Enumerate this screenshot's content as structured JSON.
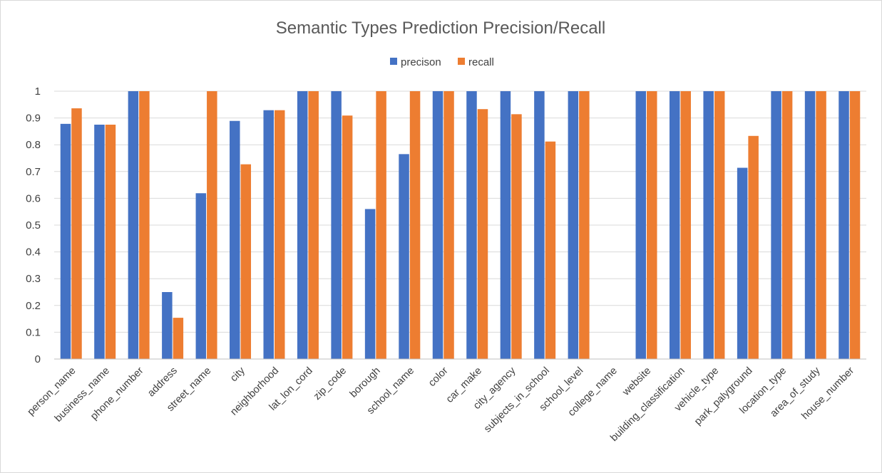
{
  "chart_data": {
    "type": "bar",
    "title": "Semantic Types Prediction Precision/Recall",
    "xlabel": "",
    "ylabel": "",
    "ylim": [
      0,
      1
    ],
    "yticks": [
      "0",
      "0.1",
      "0.2",
      "0.3",
      "0.4",
      "0.5",
      "0.6",
      "0.7",
      "0.8",
      "0.9",
      "1"
    ],
    "grid": true,
    "legend_position": "top",
    "categories": [
      "person_name",
      "business_name",
      "phone_number",
      "address",
      "street_name",
      "city",
      "neighborhood",
      "lat_lon_cord",
      "zip_code",
      "borough",
      "school_name",
      "color",
      "car_make",
      "city_agency",
      "subjects_in_school",
      "school_level",
      "college_name",
      "website",
      "building_classification",
      "vehicle_type",
      "park_palyground",
      "location_type",
      "area_of_study",
      "house_number"
    ],
    "series": [
      {
        "name": "precison",
        "color": "#4472C4",
        "values": [
          0.878,
          0.875,
          1,
          0.25,
          0.619,
          0.889,
          0.929,
          1,
          1,
          0.56,
          0.765,
          1,
          1,
          1,
          1,
          1,
          0,
          1,
          1,
          1,
          0.714,
          1,
          1,
          1
        ]
      },
      {
        "name": "recall",
        "color": "#ED7D31",
        "values": [
          0.936,
          0.875,
          1,
          0.154,
          1,
          0.727,
          0.929,
          1,
          0.909,
          1,
          1,
          1,
          0.933,
          0.914,
          0.812,
          1,
          0,
          1,
          1,
          1,
          0.833,
          1,
          1,
          1
        ]
      }
    ]
  }
}
